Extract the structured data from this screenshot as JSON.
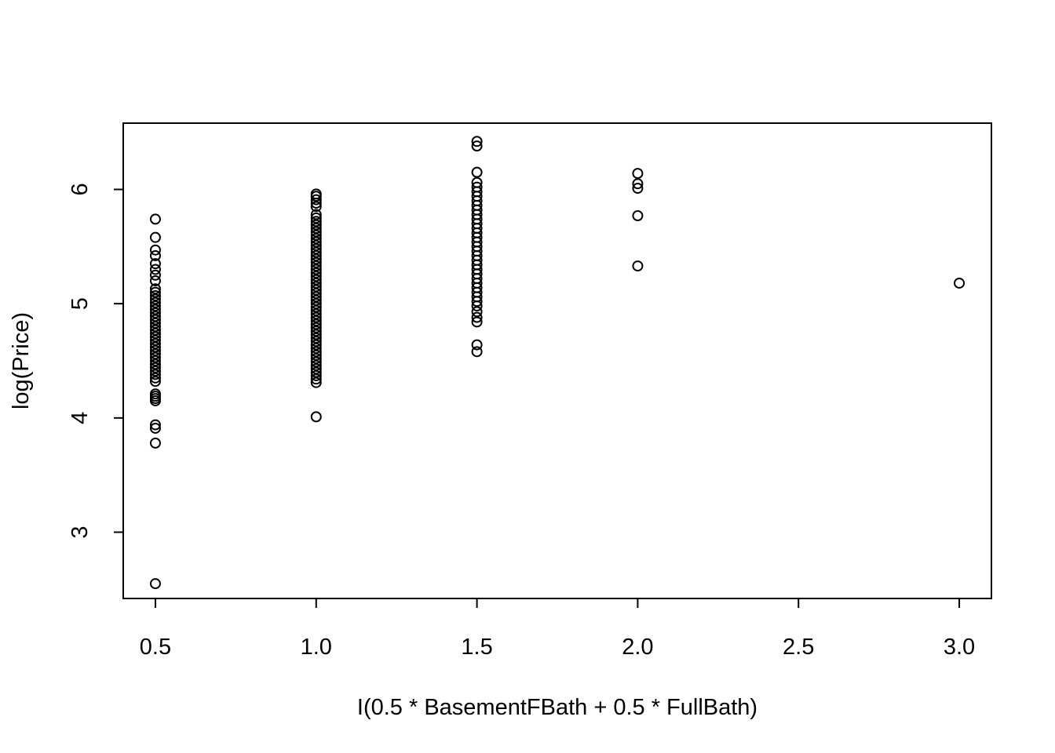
{
  "chart_data": {
    "type": "scatter",
    "title": "",
    "xlabel": "I(0.5 * BasementFBath + 0.5 * FullBath)",
    "ylabel": "log(Price)",
    "xlim": [
      0.4,
      3.1
    ],
    "ylim": [
      2.42,
      6.58
    ],
    "grid": false,
    "legend": "none",
    "x_ticks": [
      {
        "value": 0.5,
        "label": "0.5"
      },
      {
        "value": 1.0,
        "label": "1.0"
      },
      {
        "value": 1.5,
        "label": "1.5"
      },
      {
        "value": 2.0,
        "label": "2.0"
      },
      {
        "value": 2.5,
        "label": "2.5"
      },
      {
        "value": 3.0,
        "label": "3.0"
      }
    ],
    "y_ticks": [
      {
        "value": 3,
        "label": "3"
      },
      {
        "value": 4,
        "label": "4"
      },
      {
        "value": 5,
        "label": "5"
      },
      {
        "value": 6,
        "label": "6"
      }
    ],
    "series": [
      {
        "values": [
          {
            "x": 0.5,
            "y": 2.55
          },
          {
            "x": 0.5,
            "y": 3.78
          },
          {
            "x": 0.5,
            "y": 3.91
          },
          {
            "x": 0.5,
            "y": 3.94
          },
          {
            "x": 0.5,
            "y": 4.15
          },
          {
            "x": 0.5,
            "y": 4.17
          },
          {
            "x": 0.5,
            "y": 4.19
          },
          {
            "x": 0.5,
            "y": 4.21
          },
          {
            "x": 0.5,
            "y": 4.32
          },
          {
            "x": 0.5,
            "y": 4.35
          },
          {
            "x": 0.5,
            "y": 4.38
          },
          {
            "x": 0.5,
            "y": 4.41
          },
          {
            "x": 0.5,
            "y": 4.44
          },
          {
            "x": 0.5,
            "y": 4.47
          },
          {
            "x": 0.5,
            "y": 4.5
          },
          {
            "x": 0.5,
            "y": 4.53
          },
          {
            "x": 0.5,
            "y": 4.56
          },
          {
            "x": 0.5,
            "y": 4.59
          },
          {
            "x": 0.5,
            "y": 4.62
          },
          {
            "x": 0.5,
            "y": 4.65
          },
          {
            "x": 0.5,
            "y": 4.68
          },
          {
            "x": 0.5,
            "y": 4.71
          },
          {
            "x": 0.5,
            "y": 4.74
          },
          {
            "x": 0.5,
            "y": 4.77
          },
          {
            "x": 0.5,
            "y": 4.8
          },
          {
            "x": 0.5,
            "y": 4.83
          },
          {
            "x": 0.5,
            "y": 4.86
          },
          {
            "x": 0.5,
            "y": 4.89
          },
          {
            "x": 0.5,
            "y": 4.92
          },
          {
            "x": 0.5,
            "y": 4.95
          },
          {
            "x": 0.5,
            "y": 4.98
          },
          {
            "x": 0.5,
            "y": 5.01
          },
          {
            "x": 0.5,
            "y": 5.04
          },
          {
            "x": 0.5,
            "y": 5.07
          },
          {
            "x": 0.5,
            "y": 5.1
          },
          {
            "x": 0.5,
            "y": 5.13
          },
          {
            "x": 0.5,
            "y": 5.2
          },
          {
            "x": 0.5,
            "y": 5.25
          },
          {
            "x": 0.5,
            "y": 5.3
          },
          {
            "x": 0.5,
            "y": 5.35
          },
          {
            "x": 0.5,
            "y": 5.42
          },
          {
            "x": 0.5,
            "y": 5.47
          },
          {
            "x": 0.5,
            "y": 5.58
          },
          {
            "x": 0.5,
            "y": 5.74
          },
          {
            "x": 1.0,
            "y": 4.01
          },
          {
            "x": 1.0,
            "y": 4.31
          },
          {
            "x": 1.0,
            "y": 4.34
          },
          {
            "x": 1.0,
            "y": 4.37
          },
          {
            "x": 1.0,
            "y": 4.4
          },
          {
            "x": 1.0,
            "y": 4.43
          },
          {
            "x": 1.0,
            "y": 4.46
          },
          {
            "x": 1.0,
            "y": 4.49
          },
          {
            "x": 1.0,
            "y": 4.52
          },
          {
            "x": 1.0,
            "y": 4.55
          },
          {
            "x": 1.0,
            "y": 4.58
          },
          {
            "x": 1.0,
            "y": 4.61
          },
          {
            "x": 1.0,
            "y": 4.64
          },
          {
            "x": 1.0,
            "y": 4.67
          },
          {
            "x": 1.0,
            "y": 4.7
          },
          {
            "x": 1.0,
            "y": 4.73
          },
          {
            "x": 1.0,
            "y": 4.76
          },
          {
            "x": 1.0,
            "y": 4.79
          },
          {
            "x": 1.0,
            "y": 4.82
          },
          {
            "x": 1.0,
            "y": 4.85
          },
          {
            "x": 1.0,
            "y": 4.88
          },
          {
            "x": 1.0,
            "y": 4.91
          },
          {
            "x": 1.0,
            "y": 4.94
          },
          {
            "x": 1.0,
            "y": 4.97
          },
          {
            "x": 1.0,
            "y": 5.0
          },
          {
            "x": 1.0,
            "y": 5.03
          },
          {
            "x": 1.0,
            "y": 5.06
          },
          {
            "x": 1.0,
            "y": 5.09
          },
          {
            "x": 1.0,
            "y": 5.12
          },
          {
            "x": 1.0,
            "y": 5.15
          },
          {
            "x": 1.0,
            "y": 5.18
          },
          {
            "x": 1.0,
            "y": 5.21
          },
          {
            "x": 1.0,
            "y": 5.24
          },
          {
            "x": 1.0,
            "y": 5.27
          },
          {
            "x": 1.0,
            "y": 5.3
          },
          {
            "x": 1.0,
            "y": 5.33
          },
          {
            "x": 1.0,
            "y": 5.36
          },
          {
            "x": 1.0,
            "y": 5.39
          },
          {
            "x": 1.0,
            "y": 5.42
          },
          {
            "x": 1.0,
            "y": 5.45
          },
          {
            "x": 1.0,
            "y": 5.48
          },
          {
            "x": 1.0,
            "y": 5.51
          },
          {
            "x": 1.0,
            "y": 5.54
          },
          {
            "x": 1.0,
            "y": 5.57
          },
          {
            "x": 1.0,
            "y": 5.6
          },
          {
            "x": 1.0,
            "y": 5.63
          },
          {
            "x": 1.0,
            "y": 5.66
          },
          {
            "x": 1.0,
            "y": 5.69
          },
          {
            "x": 1.0,
            "y": 5.72
          },
          {
            "x": 1.0,
            "y": 5.75
          },
          {
            "x": 1.0,
            "y": 5.78
          },
          {
            "x": 1.0,
            "y": 5.85
          },
          {
            "x": 1.0,
            "y": 5.88
          },
          {
            "x": 1.0,
            "y": 5.91
          },
          {
            "x": 1.0,
            "y": 5.94
          },
          {
            "x": 1.0,
            "y": 5.96
          },
          {
            "x": 1.5,
            "y": 4.58
          },
          {
            "x": 1.5,
            "y": 4.64
          },
          {
            "x": 1.5,
            "y": 4.84
          },
          {
            "x": 1.5,
            "y": 4.88
          },
          {
            "x": 1.5,
            "y": 4.93
          },
          {
            "x": 1.5,
            "y": 4.98
          },
          {
            "x": 1.5,
            "y": 5.02
          },
          {
            "x": 1.5,
            "y": 5.06
          },
          {
            "x": 1.5,
            "y": 5.1
          },
          {
            "x": 1.5,
            "y": 5.14
          },
          {
            "x": 1.5,
            "y": 5.18
          },
          {
            "x": 1.5,
            "y": 5.22
          },
          {
            "x": 1.5,
            "y": 5.26
          },
          {
            "x": 1.5,
            "y": 5.3
          },
          {
            "x": 1.5,
            "y": 5.34
          },
          {
            "x": 1.5,
            "y": 5.38
          },
          {
            "x": 1.5,
            "y": 5.42
          },
          {
            "x": 1.5,
            "y": 5.46
          },
          {
            "x": 1.5,
            "y": 5.5
          },
          {
            "x": 1.5,
            "y": 5.54
          },
          {
            "x": 1.5,
            "y": 5.58
          },
          {
            "x": 1.5,
            "y": 5.62
          },
          {
            "x": 1.5,
            "y": 5.66
          },
          {
            "x": 1.5,
            "y": 5.7
          },
          {
            "x": 1.5,
            "y": 5.74
          },
          {
            "x": 1.5,
            "y": 5.78
          },
          {
            "x": 1.5,
            "y": 5.82
          },
          {
            "x": 1.5,
            "y": 5.86
          },
          {
            "x": 1.5,
            "y": 5.9
          },
          {
            "x": 1.5,
            "y": 5.94
          },
          {
            "x": 1.5,
            "y": 5.98
          },
          {
            "x": 1.5,
            "y": 6.02
          },
          {
            "x": 1.5,
            "y": 6.06
          },
          {
            "x": 1.5,
            "y": 6.15
          },
          {
            "x": 1.5,
            "y": 6.38
          },
          {
            "x": 1.5,
            "y": 6.42
          },
          {
            "x": 2.0,
            "y": 5.33
          },
          {
            "x": 2.0,
            "y": 5.77
          },
          {
            "x": 2.0,
            "y": 6.01
          },
          {
            "x": 2.0,
            "y": 6.05
          },
          {
            "x": 2.0,
            "y": 6.14
          },
          {
            "x": 3.0,
            "y": 5.18
          }
        ]
      }
    ]
  }
}
